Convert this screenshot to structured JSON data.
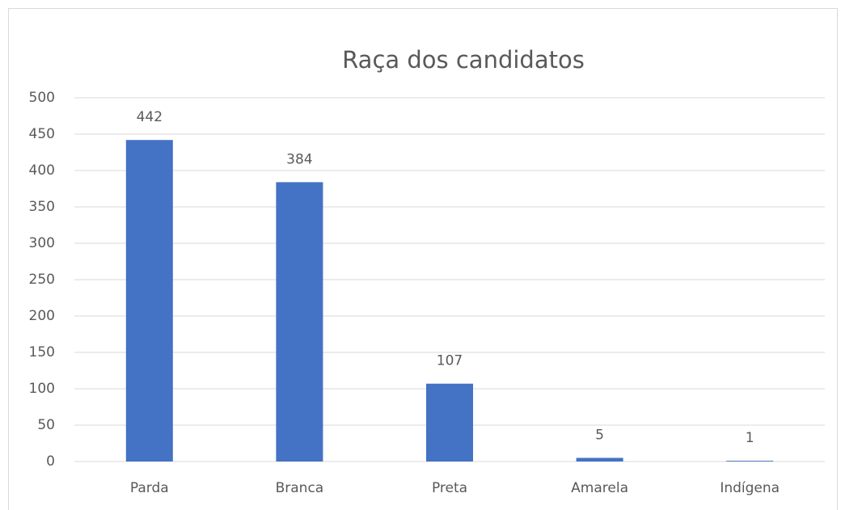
{
  "chart_data": {
    "type": "bar",
    "title": "Raça dos candidatos",
    "categories": [
      "Parda",
      "Branca",
      "Preta",
      "Amarela",
      "Indígena"
    ],
    "values": [
      442,
      384,
      107,
      5,
      1
    ],
    "color": "#4472c4",
    "ylim": [
      0,
      500
    ],
    "yticks": [
      0,
      50,
      100,
      150,
      200,
      250,
      300,
      350,
      400,
      450,
      500
    ],
    "grid": true
  }
}
